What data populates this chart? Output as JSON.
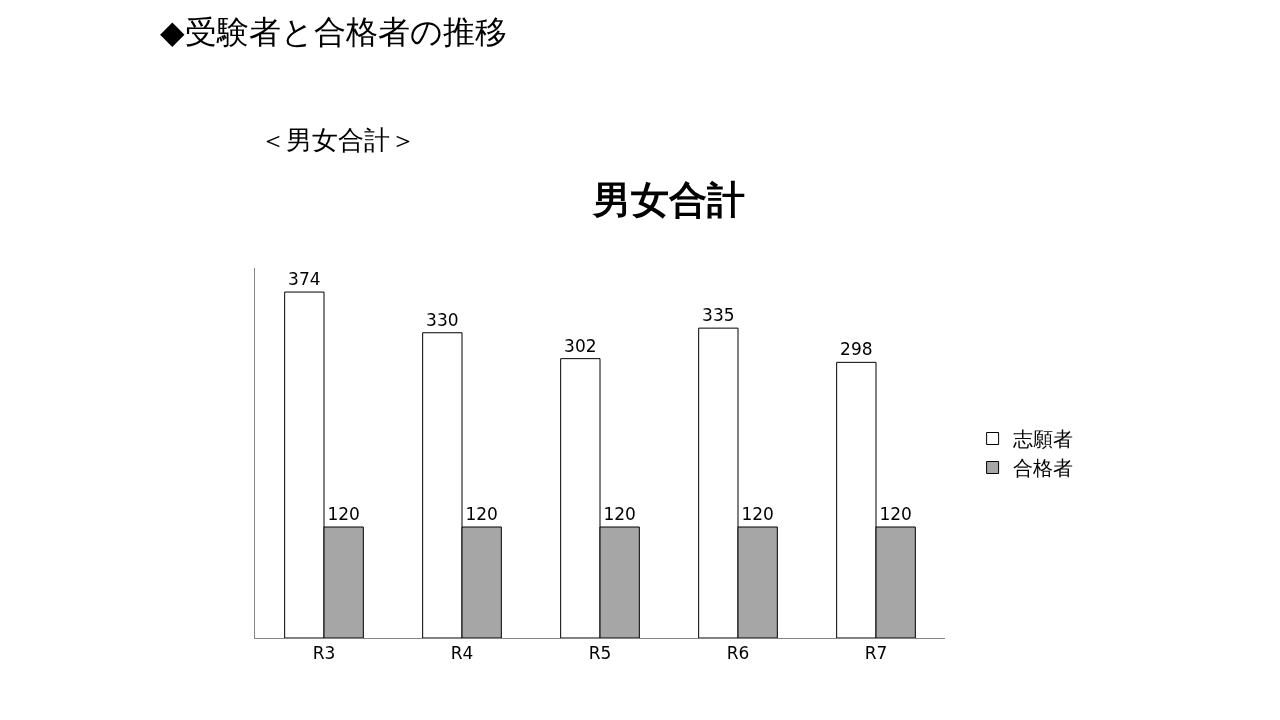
{
  "chart_data": {
    "type": "bar",
    "title": "◆受験者と合格者の推移",
    "subtitle": "＜男女合計＞",
    "annotations": [
      "男女合計"
    ],
    "categories": [
      "R3",
      "R4",
      "R5",
      "R6",
      "R7"
    ],
    "series": [
      {
        "name": "志願者",
        "color": "#ffffff",
        "values": [
          374,
          330,
          302,
          335,
          298
        ]
      },
      {
        "name": "合格者",
        "color": "#a6a6a6",
        "values": [
          120,
          120,
          120,
          120,
          120
        ]
      }
    ],
    "ylim": [
      0,
      400
    ],
    "data_labels": true,
    "legend": "right",
    "tick_labels": "x"
  }
}
